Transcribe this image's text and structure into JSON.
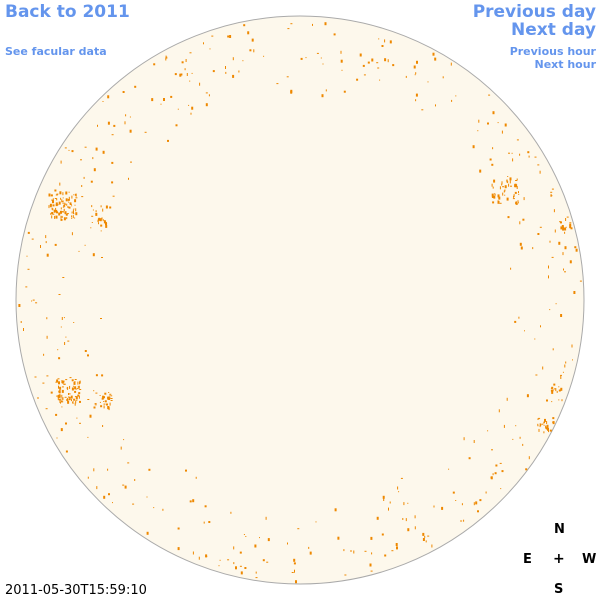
{
  "nav": {
    "back_label": "Back to 2011",
    "facular_label": "See facular data",
    "prev_day_label": "Previous day",
    "next_day_label": "Next day",
    "prev_hour_label": "Previous hour",
    "next_hour_label": "Next hour"
  },
  "compass": {
    "north": "N",
    "east": "E",
    "center": "+",
    "west": "W",
    "south": "S"
  },
  "timestamp": "2011-05-30T15:59:10",
  "colors": {
    "link": "#6495ed",
    "disk_fill": "#fdf8ec",
    "disk_stroke": "#aaaaaa",
    "facula": "#ee8800"
  }
}
